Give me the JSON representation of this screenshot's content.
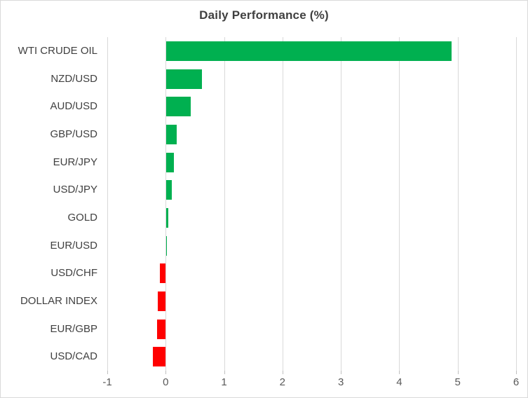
{
  "colors": {
    "positive_bar": "#00B050",
    "negative_bar": "#FF0000",
    "gridline": "#D9D9D9",
    "axis_line": "#D9D9D9",
    "title_text": "#404040",
    "category_text": "#404040",
    "tick_text": "#595959",
    "chart_border": "#D9D9D9",
    "background": "#FFFFFF"
  },
  "chart_data": {
    "type": "bar",
    "orientation": "horizontal",
    "title": "Daily Performance (%)",
    "xlabel": "",
    "ylabel": "",
    "categories": [
      "WTI CRUDE OIL",
      "NZD/USD",
      "AUD/USD",
      "GBP/USD",
      "EUR/JPY",
      "USD/JPY",
      "GOLD",
      "EUR/USD",
      "USD/CHF",
      "DOLLAR INDEX",
      "EUR/GBP",
      "USD/CAD"
    ],
    "values": [
      4.9,
      0.62,
      0.43,
      0.19,
      0.14,
      0.1,
      0.04,
      0.02,
      -0.1,
      -0.13,
      -0.15,
      -0.22
    ],
    "xlim": [
      -1,
      6
    ],
    "xticks": [
      -1,
      0,
      1,
      2,
      3,
      4,
      5,
      6
    ],
    "grid": true,
    "legend": false
  }
}
